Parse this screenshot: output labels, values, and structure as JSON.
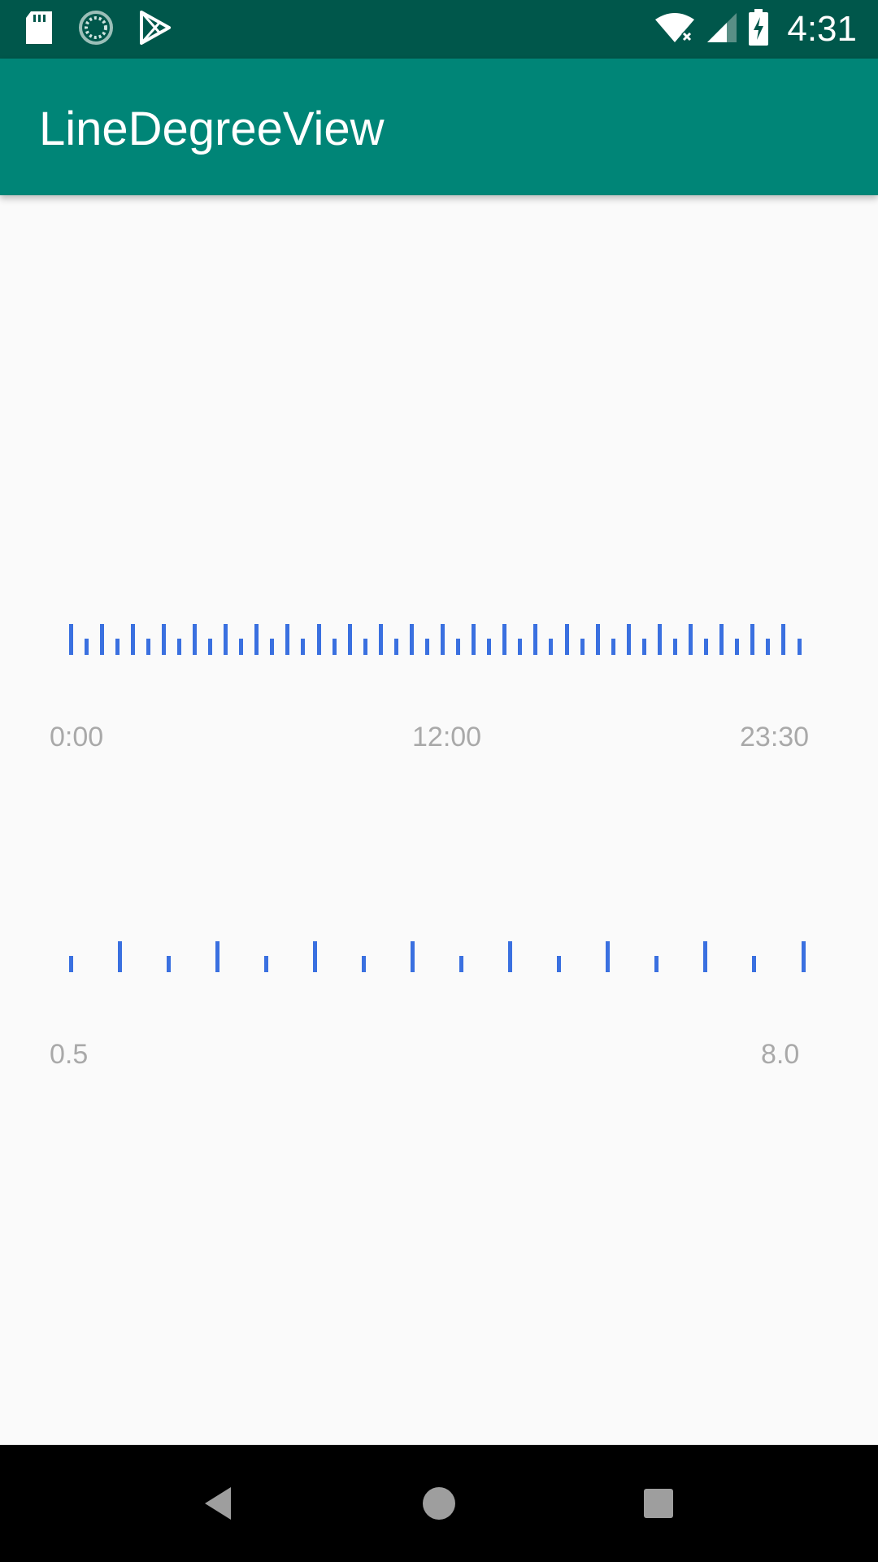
{
  "status_bar": {
    "time": "4:31",
    "icons_left": [
      "sd-card-icon",
      "sync-icon",
      "play-store-icon"
    ],
    "icons_right": [
      "wifi-icon",
      "signal-icon",
      "battery-charging-icon"
    ]
  },
  "app_bar": {
    "title": "LineDegreeView",
    "color": "#008577"
  },
  "rulers": [
    {
      "name": "time-ruler",
      "tick_count": 48,
      "major_every": 2,
      "labels": [
        "0:00",
        "12:00",
        "23:30"
      ]
    },
    {
      "name": "value-ruler",
      "tick_count": 16,
      "major_every": 2,
      "labels": [
        "0.5",
        "8.0"
      ]
    }
  ],
  "colors": {
    "tick": "#3a70e0",
    "label": "#a9a9a9",
    "status_bar": "#00574b",
    "background": "#fafafa"
  },
  "nav_bar": {
    "buttons": [
      "back-icon",
      "home-icon",
      "recents-icon"
    ]
  }
}
